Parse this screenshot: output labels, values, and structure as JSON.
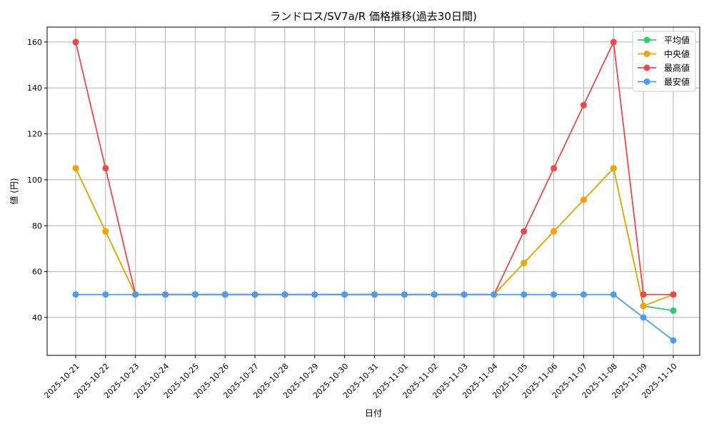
{
  "chart_data": {
    "type": "line",
    "title": "ランドロス/SV7a/R 価格推移(過去30日間)",
    "xlabel": "日付",
    "ylabel": "値 (円)",
    "x": [
      "2025-10-21",
      "2025-10-22",
      "2025-10-23",
      "2025-10-24",
      "2025-10-25",
      "2025-10-26",
      "2025-10-27",
      "2025-10-28",
      "2025-10-29",
      "2025-10-30",
      "2025-10-31",
      "2025-11-01",
      "2025-11-02",
      "2025-11-03",
      "2025-11-04",
      "2025-11-05",
      "2025-11-06",
      "2025-11-07",
      "2025-11-08",
      "2025-11-09",
      "2025-11-10"
    ],
    "yticks": [
      40,
      60,
      80,
      100,
      120,
      140,
      160
    ],
    "ylim": [
      23.5,
      166.5
    ],
    "grid": true,
    "legend_position": "top-right",
    "series": [
      {
        "name": "平均値",
        "color": "#2ecc71",
        "values": [
          105,
          77.5,
          50,
          50,
          50,
          50,
          50,
          50,
          50,
          50,
          50,
          50,
          50,
          50,
          50,
          63.75,
          77.5,
          91.25,
          105,
          45,
          43
        ]
      },
      {
        "name": "中央値",
        "color": "#f5a300",
        "values": [
          105,
          77.5,
          50,
          50,
          50,
          50,
          50,
          50,
          50,
          50,
          50,
          50,
          50,
          50,
          50,
          63.75,
          77.5,
          91.25,
          105,
          45,
          50
        ]
      },
      {
        "name": "最高値",
        "color": "#f04848",
        "values": [
          160,
          105,
          50,
          50,
          50,
          50,
          50,
          50,
          50,
          50,
          50,
          50,
          50,
          50,
          50,
          77.5,
          105,
          132.5,
          160,
          50,
          50
        ]
      },
      {
        "name": "最安値",
        "color": "#4a9df5",
        "values": [
          50,
          50,
          50,
          50,
          50,
          50,
          50,
          50,
          50,
          50,
          50,
          50,
          50,
          50,
          50,
          50,
          50,
          50,
          50,
          40,
          30
        ]
      }
    ]
  }
}
